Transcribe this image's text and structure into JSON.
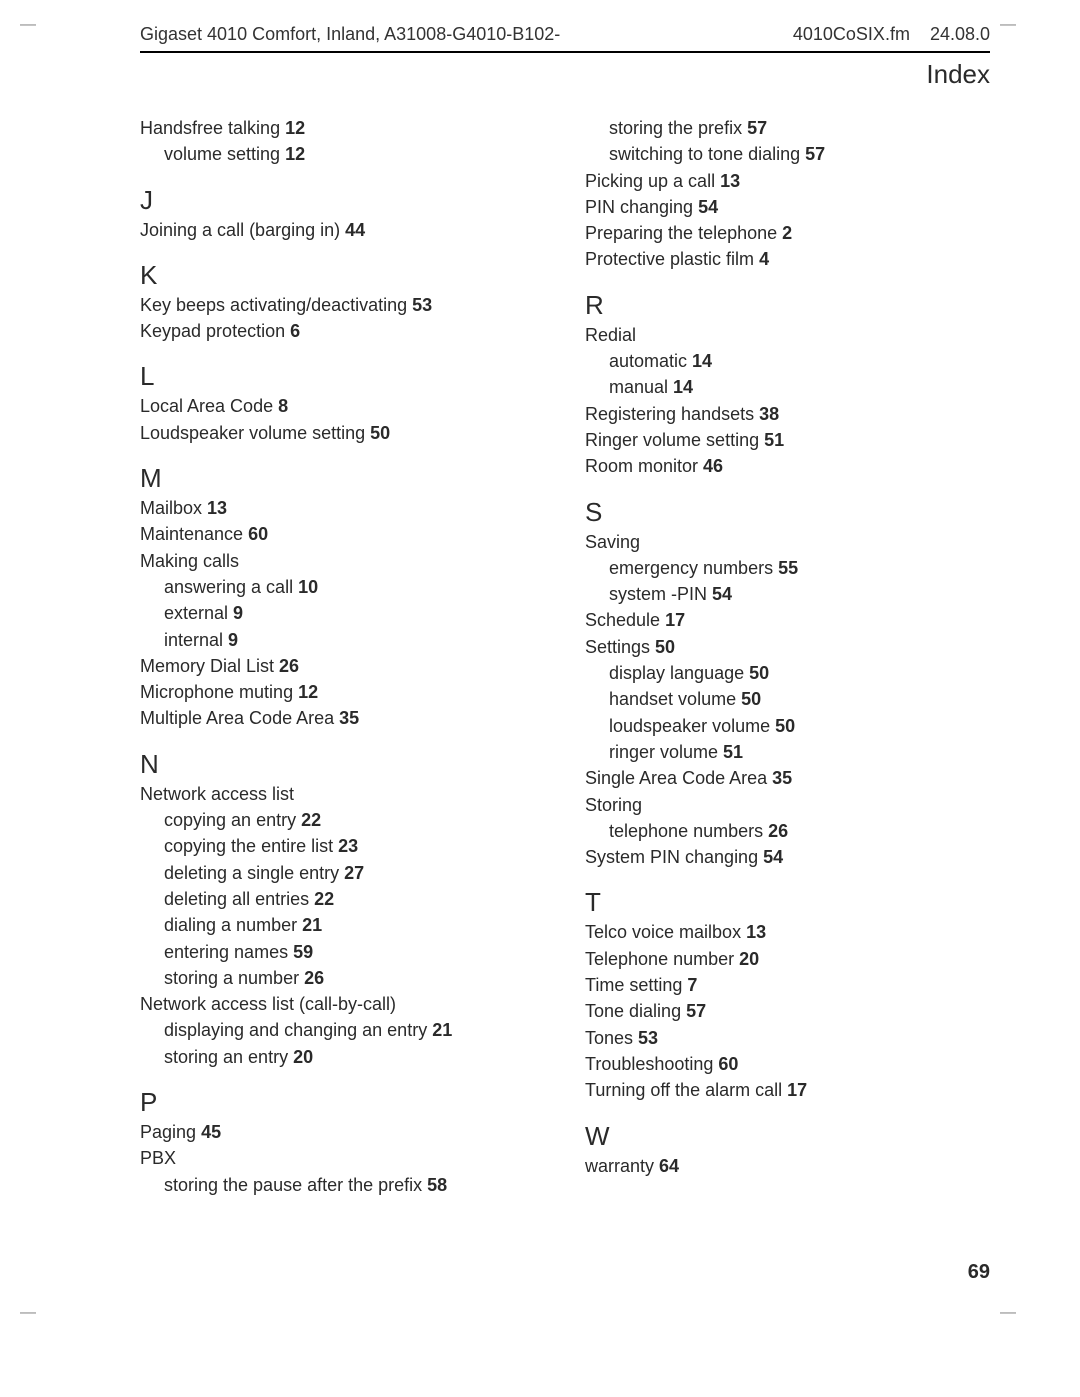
{
  "header": {
    "left": "Gigaset 4010 Comfort, Inland, A31008-G4010-B102-",
    "center": "4010CoSIX.fm",
    "right": "24.08.0"
  },
  "title": "Index",
  "pageNumber": "69",
  "cropMarks": {
    "tl": "—",
    "tr": "—",
    "bl": "—",
    "br": "—"
  },
  "col1": [
    {
      "type": "entry",
      "text": "Handsfree talking",
      "page": "12"
    },
    {
      "type": "entry",
      "sub": true,
      "text": "volume setting",
      "page": "12"
    },
    {
      "type": "letter",
      "text": "J"
    },
    {
      "type": "entry",
      "text": "Joining a call (barging in)",
      "page": "44"
    },
    {
      "type": "letter",
      "text": "K"
    },
    {
      "type": "entry",
      "text": "Key beeps activating/deactivating",
      "page": "53"
    },
    {
      "type": "entry",
      "text": "Keypad protection",
      "page": "6"
    },
    {
      "type": "letter",
      "text": "L"
    },
    {
      "type": "entry",
      "text": "Local Area Code",
      "page": "8"
    },
    {
      "type": "entry",
      "text": "Loudspeaker volume setting",
      "page": "50"
    },
    {
      "type": "letter",
      "text": "M"
    },
    {
      "type": "entry",
      "text": "Mailbox",
      "page": "13"
    },
    {
      "type": "entry",
      "text": "Maintenance",
      "page": "60"
    },
    {
      "type": "entry",
      "text": "Making calls",
      "page": ""
    },
    {
      "type": "entry",
      "sub": true,
      "text": "answering a call",
      "page": "10"
    },
    {
      "type": "entry",
      "sub": true,
      "text": "external",
      "page": "9"
    },
    {
      "type": "entry",
      "sub": true,
      "text": "internal",
      "page": "9"
    },
    {
      "type": "entry",
      "text": "Memory Dial List",
      "page": "26"
    },
    {
      "type": "entry",
      "text": "Microphone muting",
      "page": "12"
    },
    {
      "type": "entry",
      "text": "Multiple Area Code Area",
      "page": "35"
    },
    {
      "type": "letter",
      "text": "N"
    },
    {
      "type": "entry",
      "text": "Network access list",
      "page": ""
    },
    {
      "type": "entry",
      "sub": true,
      "text": "copying an entry",
      "page": "22"
    },
    {
      "type": "entry",
      "sub": true,
      "text": "copying the entire list",
      "page": "23"
    },
    {
      "type": "entry",
      "sub": true,
      "text": "deleting a single entry",
      "page": "27"
    },
    {
      "type": "entry",
      "sub": true,
      "text": "deleting all entries",
      "page": "22"
    },
    {
      "type": "entry",
      "sub": true,
      "text": "dialing a number",
      "page": "21"
    },
    {
      "type": "entry",
      "sub": true,
      "text": "entering names",
      "page": "59"
    },
    {
      "type": "entry",
      "sub": true,
      "text": "storing a number",
      "page": "26"
    },
    {
      "type": "entry",
      "text": "Network access list (call-by-call)",
      "page": ""
    },
    {
      "type": "entry",
      "sub": true,
      "text": "displaying and changing an entry",
      "page": "21"
    },
    {
      "type": "entry",
      "sub": true,
      "text": "storing an entry",
      "page": "20"
    },
    {
      "type": "letter",
      "text": "P"
    },
    {
      "type": "entry",
      "text": "Paging",
      "page": "45"
    },
    {
      "type": "entry",
      "text": "PBX",
      "page": ""
    },
    {
      "type": "entry",
      "sub": true,
      "text": "storing the pause after the prefix",
      "page": "58"
    }
  ],
  "col2": [
    {
      "type": "entry",
      "sub": true,
      "text": "storing the prefix",
      "page": "57"
    },
    {
      "type": "entry",
      "sub": true,
      "text": "switching to tone dialing",
      "page": "57"
    },
    {
      "type": "entry",
      "text": "Picking up a call",
      "page": "13"
    },
    {
      "type": "entry",
      "text": "PIN changing",
      "page": "54"
    },
    {
      "type": "entry",
      "text": "Preparing the telephone",
      "page": "2"
    },
    {
      "type": "entry",
      "text": "Protective plastic film",
      "page": "4"
    },
    {
      "type": "letter",
      "text": "R"
    },
    {
      "type": "entry",
      "text": "Redial",
      "page": ""
    },
    {
      "type": "entry",
      "sub": true,
      "text": "automatic",
      "page": "14"
    },
    {
      "type": "entry",
      "sub": true,
      "text": "manual",
      "page": "14"
    },
    {
      "type": "entry",
      "text": "Registering handsets",
      "page": "38"
    },
    {
      "type": "entry",
      "text": "Ringer volume setting",
      "page": "51"
    },
    {
      "type": "entry",
      "text": "Room monitor",
      "page": "46"
    },
    {
      "type": "letter",
      "text": "S"
    },
    {
      "type": "entry",
      "text": "Saving",
      "page": ""
    },
    {
      "type": "entry",
      "sub": true,
      "text": "emergency numbers",
      "page": "55"
    },
    {
      "type": "entry",
      "sub": true,
      "text": "system -PIN",
      "page": "54"
    },
    {
      "type": "entry",
      "text": "Schedule",
      "page": "17"
    },
    {
      "type": "entry",
      "text": "Settings",
      "page": "50"
    },
    {
      "type": "entry",
      "sub": true,
      "text": "display language",
      "page": "50"
    },
    {
      "type": "entry",
      "sub": true,
      "text": "handset volume",
      "page": "50"
    },
    {
      "type": "entry",
      "sub": true,
      "text": "loudspeaker volume",
      "page": "50"
    },
    {
      "type": "entry",
      "sub": true,
      "text": "ringer volume",
      "page": "51"
    },
    {
      "type": "entry",
      "text": "Single Area Code Area",
      "page": "35"
    },
    {
      "type": "entry",
      "text": "Storing",
      "page": ""
    },
    {
      "type": "entry",
      "sub": true,
      "text": "telephone numbers",
      "page": "26"
    },
    {
      "type": "entry",
      "text": "System PIN changing",
      "page": "54"
    },
    {
      "type": "letter",
      "text": "T"
    },
    {
      "type": "entry",
      "text": "Telco voice mailbox",
      "page": "13"
    },
    {
      "type": "entry",
      "text": "Telephone number",
      "page": "20"
    },
    {
      "type": "entry",
      "text": "Time setting",
      "page": "7"
    },
    {
      "type": "entry",
      "text": "Tone dialing",
      "page": "57"
    },
    {
      "type": "entry",
      "text": "Tones",
      "page": "53"
    },
    {
      "type": "entry",
      "text": "Troubleshooting",
      "page": "60"
    },
    {
      "type": "entry",
      "text": "Turning off the alarm call",
      "page": "17"
    },
    {
      "type": "letter",
      "text": "W"
    },
    {
      "type": "entry",
      "text": "warranty",
      "page": "64"
    }
  ]
}
